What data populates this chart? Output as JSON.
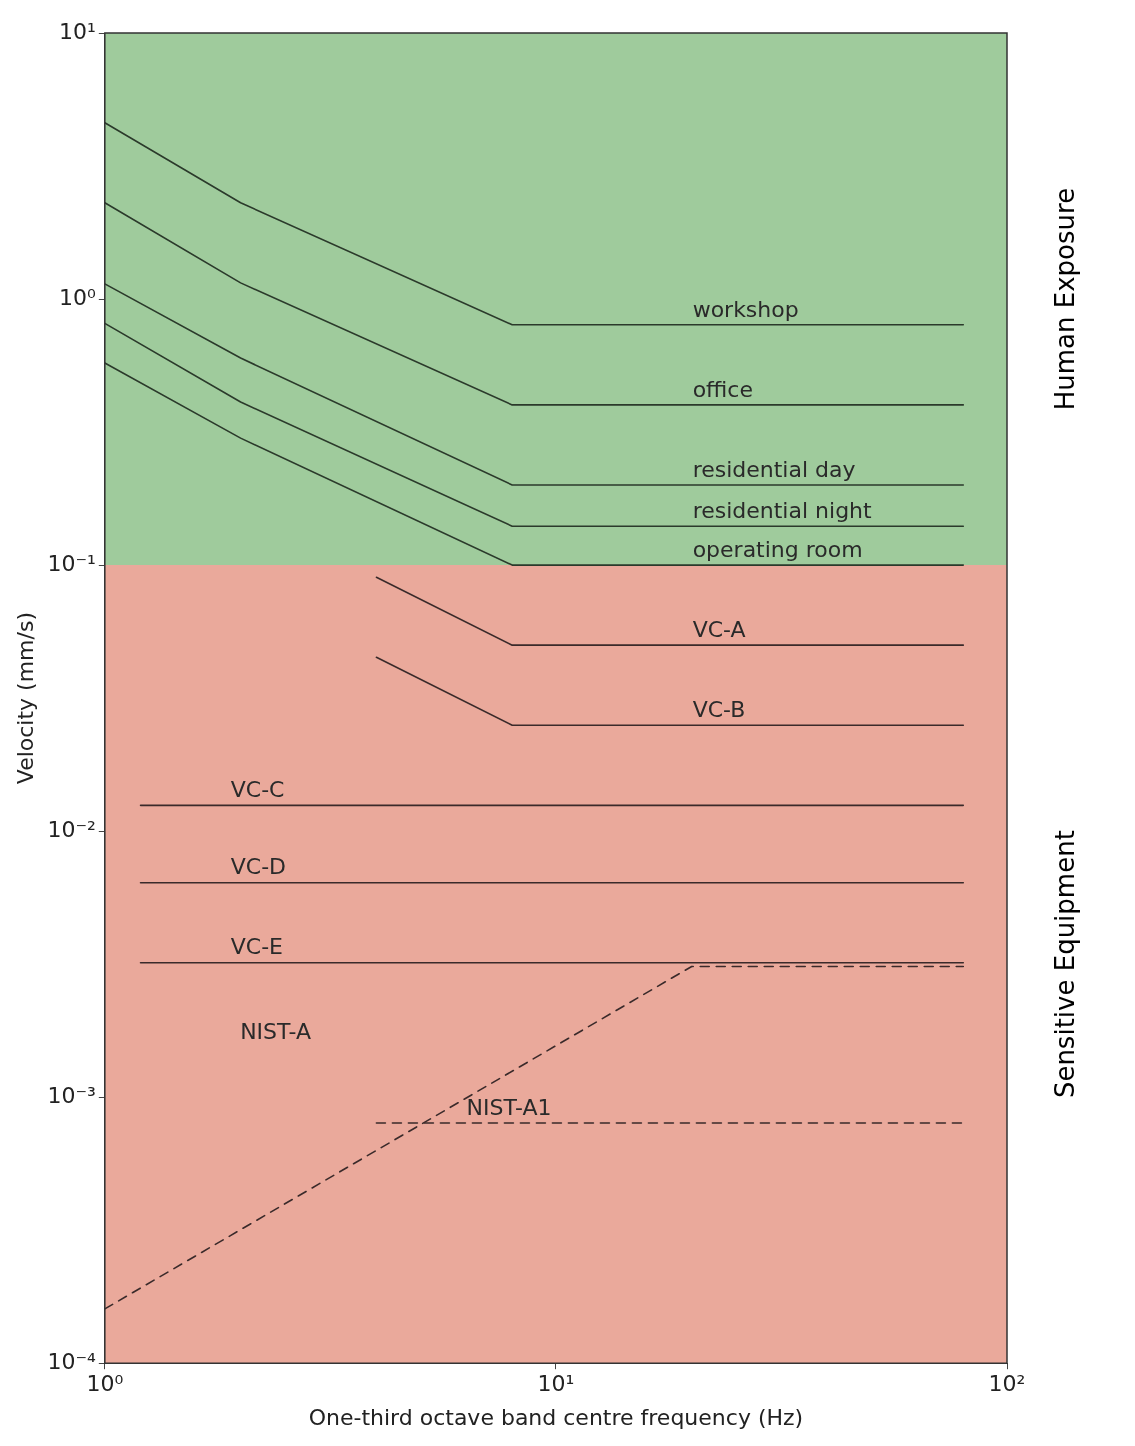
{
  "chart_data": {
    "type": "line",
    "xlabel": "One-third octave band centre frequency (Hz)",
    "ylabel": "Velocity (mm/s)",
    "log": "xy",
    "xlim": [
      1,
      100
    ],
    "ylim": [
      0.0001,
      10
    ],
    "xticks": [
      {
        "value": 1,
        "label": "10⁰"
      },
      {
        "value": 10,
        "label": "10¹"
      },
      {
        "value": 100,
        "label": "10²"
      }
    ],
    "yticks": [
      {
        "value": 0.0001,
        "label": "10⁻⁴"
      },
      {
        "value": 0.001,
        "label": "10⁻³"
      },
      {
        "value": 0.01,
        "label": "10⁻²"
      },
      {
        "value": 0.1,
        "label": "10⁻¹"
      },
      {
        "value": 1,
        "label": "10⁰"
      },
      {
        "value": 10,
        "label": "10¹"
      }
    ],
    "legend": false,
    "marker": "none",
    "series": [
      {
        "name": "workshop",
        "color": "#2b3a2b",
        "x": [
          1,
          2,
          8,
          80
        ],
        "values": [
          4.6,
          2.3,
          0.8,
          0.8
        ]
      },
      {
        "name": "office",
        "color": "#2b3a2b",
        "x": [
          1,
          2,
          8,
          80
        ],
        "values": [
          2.3,
          1.15,
          0.4,
          0.4
        ]
      },
      {
        "name": "residential day",
        "color": "#2b3a2b",
        "x": [
          1,
          2,
          8,
          80
        ],
        "values": [
          1.14,
          0.6,
          0.2,
          0.2
        ]
      },
      {
        "name": "residential night",
        "color": "#2b3a2b",
        "x": [
          1,
          2,
          8,
          80
        ],
        "values": [
          0.81,
          0.41,
          0.14,
          0.14
        ]
      },
      {
        "name": "operating room",
        "color": "#2b3a2b",
        "x": [
          1,
          2,
          8,
          80
        ],
        "values": [
          0.575,
          0.3,
          0.1,
          0.1
        ]
      },
      {
        "name": "VC-A",
        "color": "#3a2a2a",
        "x": [
          4,
          8,
          80
        ],
        "values": [
          0.09,
          0.05,
          0.05
        ]
      },
      {
        "name": "VC-B",
        "color": "#3a2a2a",
        "x": [
          4,
          8,
          80
        ],
        "values": [
          0.045,
          0.025,
          0.025
        ]
      },
      {
        "name": "VC-C",
        "color": "#3a2a2a",
        "x": [
          1.2,
          80
        ],
        "values": [
          0.0125,
          0.0125
        ]
      },
      {
        "name": "VC-D",
        "color": "#3a2a2a",
        "x": [
          1.2,
          80
        ],
        "values": [
          0.0064,
          0.0064
        ]
      },
      {
        "name": "VC-E",
        "color": "#3a2a2a",
        "x": [
          1.2,
          80
        ],
        "values": [
          0.0032,
          0.0032
        ]
      },
      {
        "color": "#3a2a2a",
        "line_style": "dashed",
        "x": [
          1,
          20,
          80
        ],
        "values": [
          0.00016,
          0.0031,
          0.0031
        ]
      },
      {
        "name": "NIST-A1",
        "color": "#3a2a2a",
        "line_style": "dashed",
        "x": [
          4,
          80
        ],
        "values": [
          0.0008,
          0.0008
        ]
      }
    ],
    "bands": [
      {
        "axis": "y",
        "from": 0.1,
        "to": 10,
        "label": "Human Exposure",
        "color": "#9fcb9c"
      },
      {
        "axis": "y",
        "from": 0.0001,
        "to": 0.1,
        "label": "Sensitive Equipment",
        "color": "#eaa99b"
      }
    ],
    "annotations": [
      "NIST-A"
    ]
  }
}
